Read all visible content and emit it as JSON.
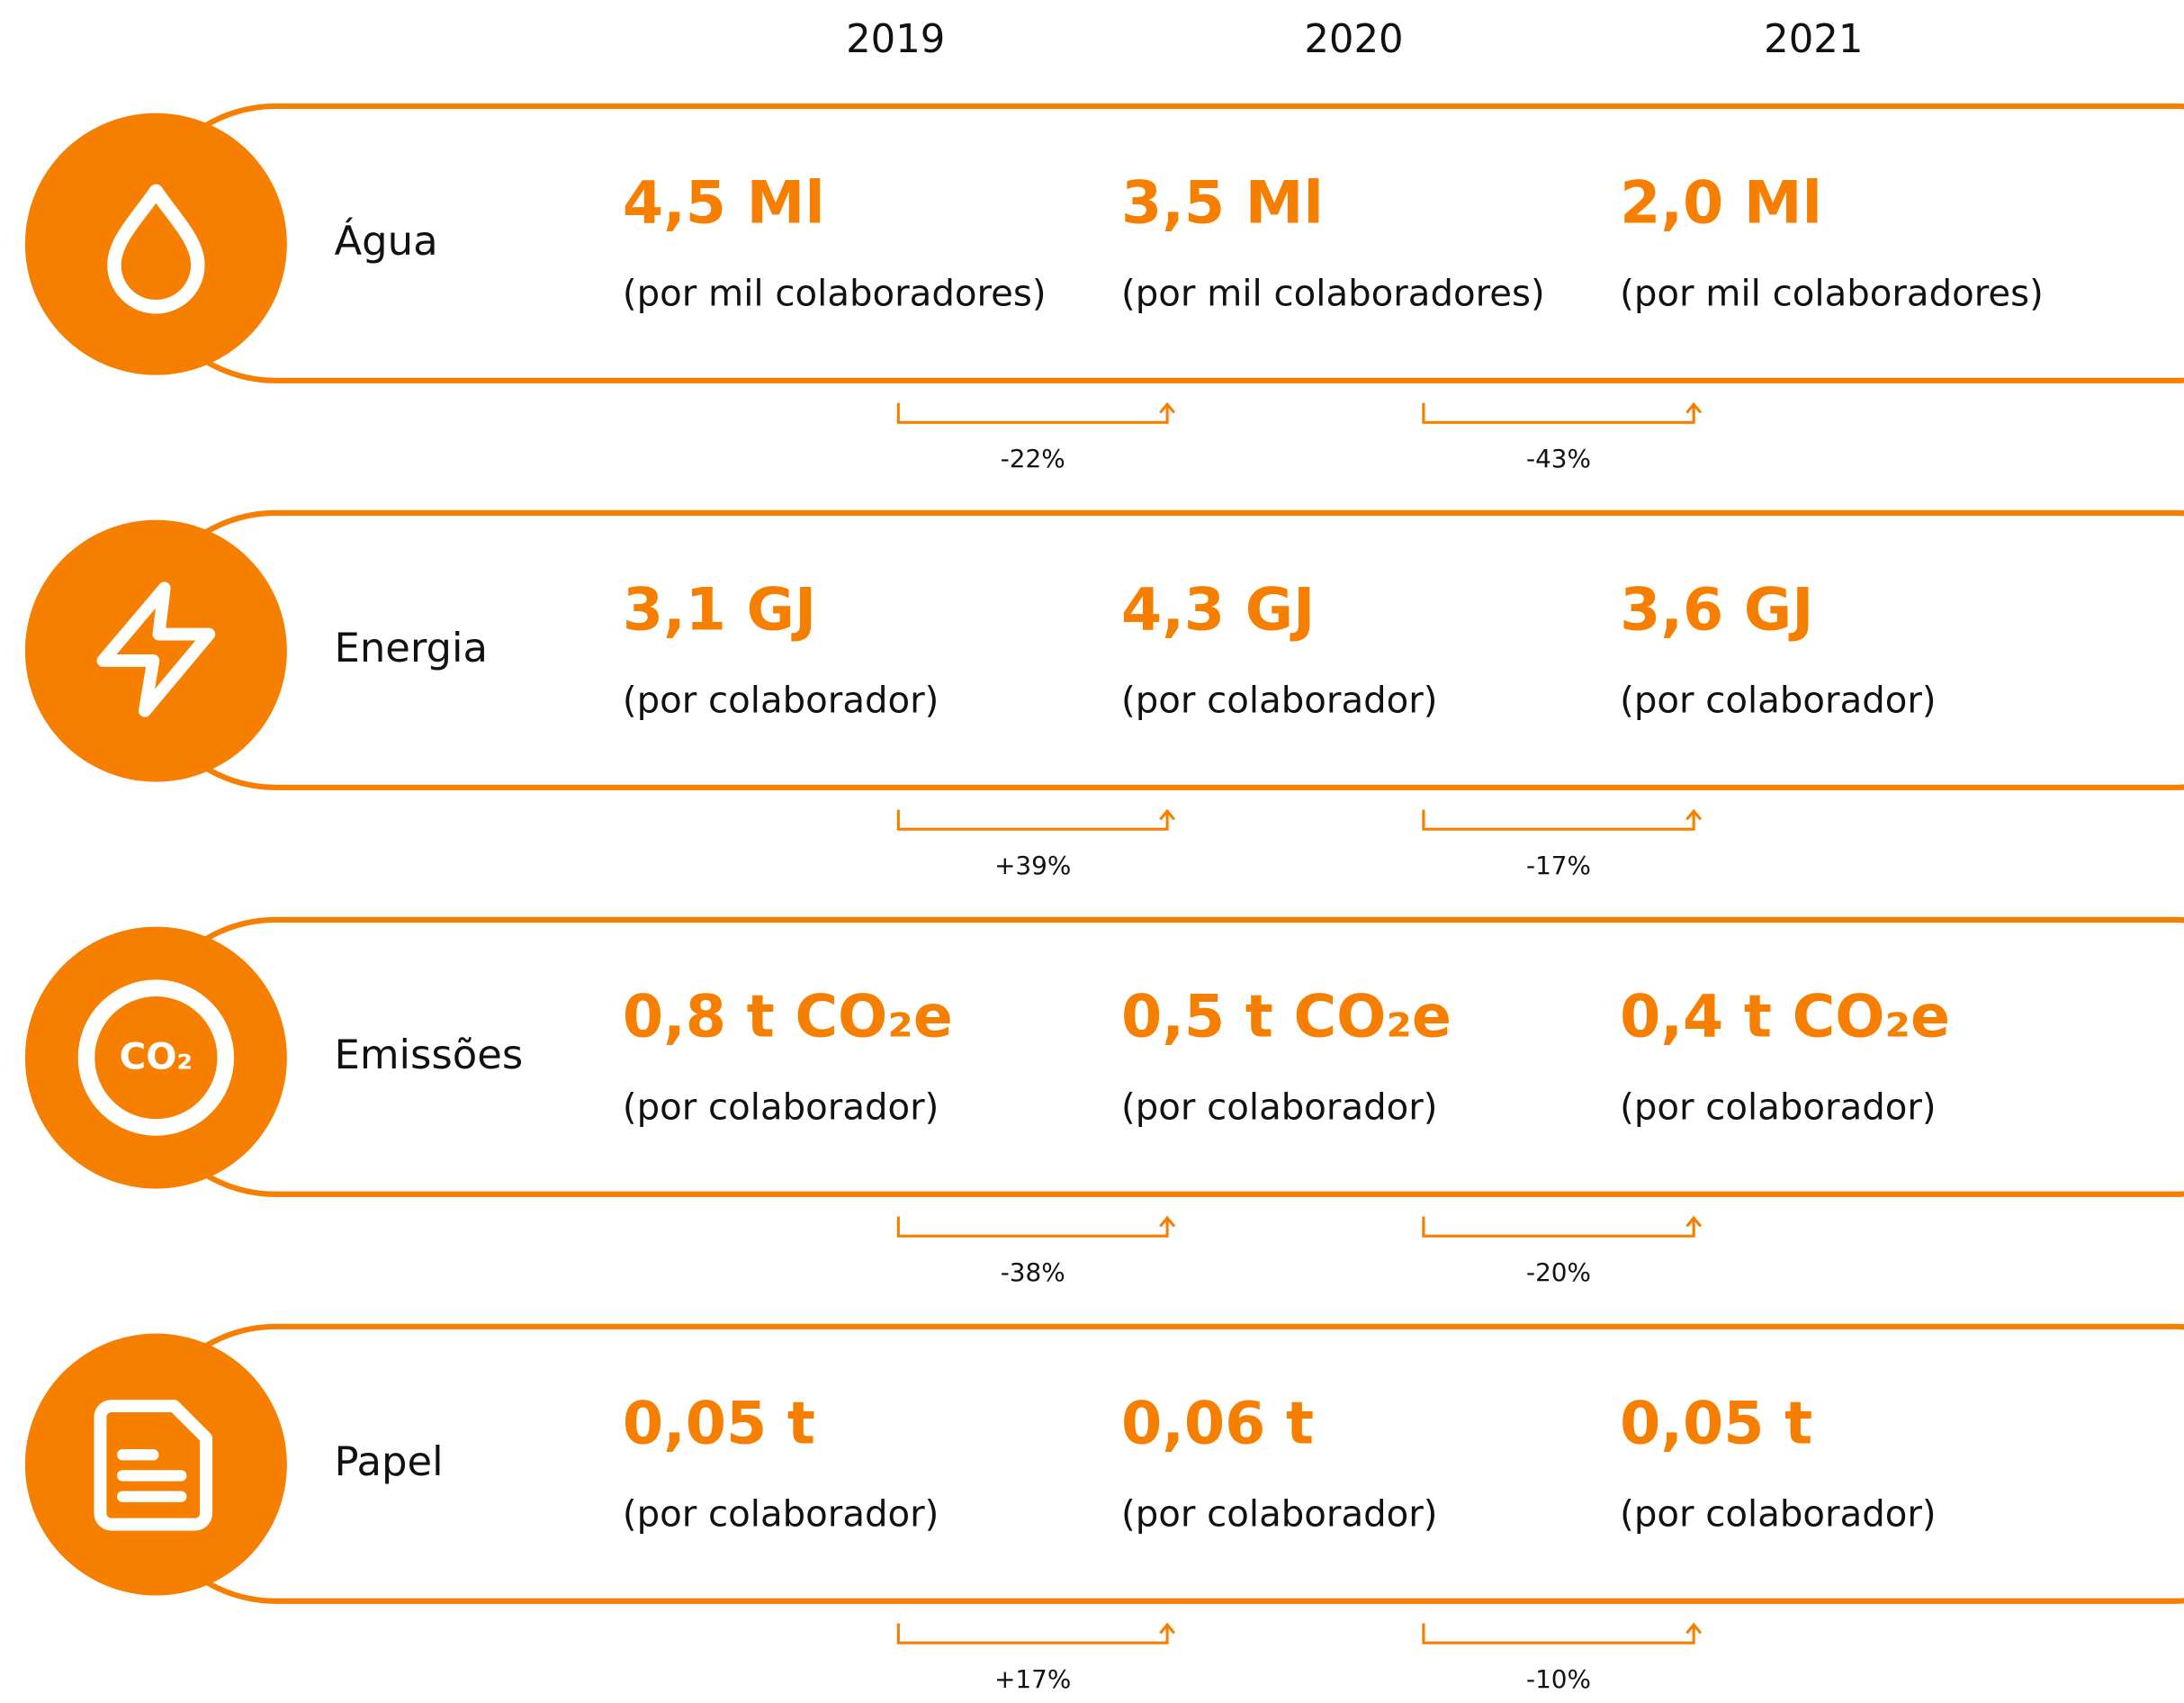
{
  "header": {
    "years": [
      "2019",
      "2020",
      "2021"
    ]
  },
  "rows": [
    {
      "label": "Água",
      "values": [
        "4,5 Ml",
        "3,5 Ml",
        "2,0 Ml"
      ],
      "notes": [
        "(por mil colaboradores)",
        "(por mil colaboradores)",
        "(por mil colaboradores)"
      ],
      "changes": [
        "-22%",
        "-43%"
      ]
    },
    {
      "label": "Energia",
      "values": [
        "3,1 GJ",
        "4,3 GJ",
        "3,6 GJ"
      ],
      "notes": [
        "(por colaborador)",
        "(por colaborador)",
        "(por colaborador)"
      ],
      "changes": [
        "+39%",
        "-17%"
      ]
    },
    {
      "label": "Emissões",
      "icon_text": "CO₂",
      "values": [
        "0,8 t CO₂e",
        "0,5 t CO₂e",
        "0,4 t CO₂e"
      ],
      "notes": [
        "(por colaborador)",
        "(por colaborador)",
        "(por colaborador)"
      ],
      "changes": [
        "-38%",
        "-20%"
      ]
    },
    {
      "label": "Papel",
      "values": [
        "0,05 t",
        "0,06 t",
        "0,05 t"
      ],
      "notes": [
        "(por colaborador)",
        "(por colaborador)",
        "(por colaborador)"
      ],
      "changes": [
        "+17%",
        "-10%"
      ]
    }
  ]
}
